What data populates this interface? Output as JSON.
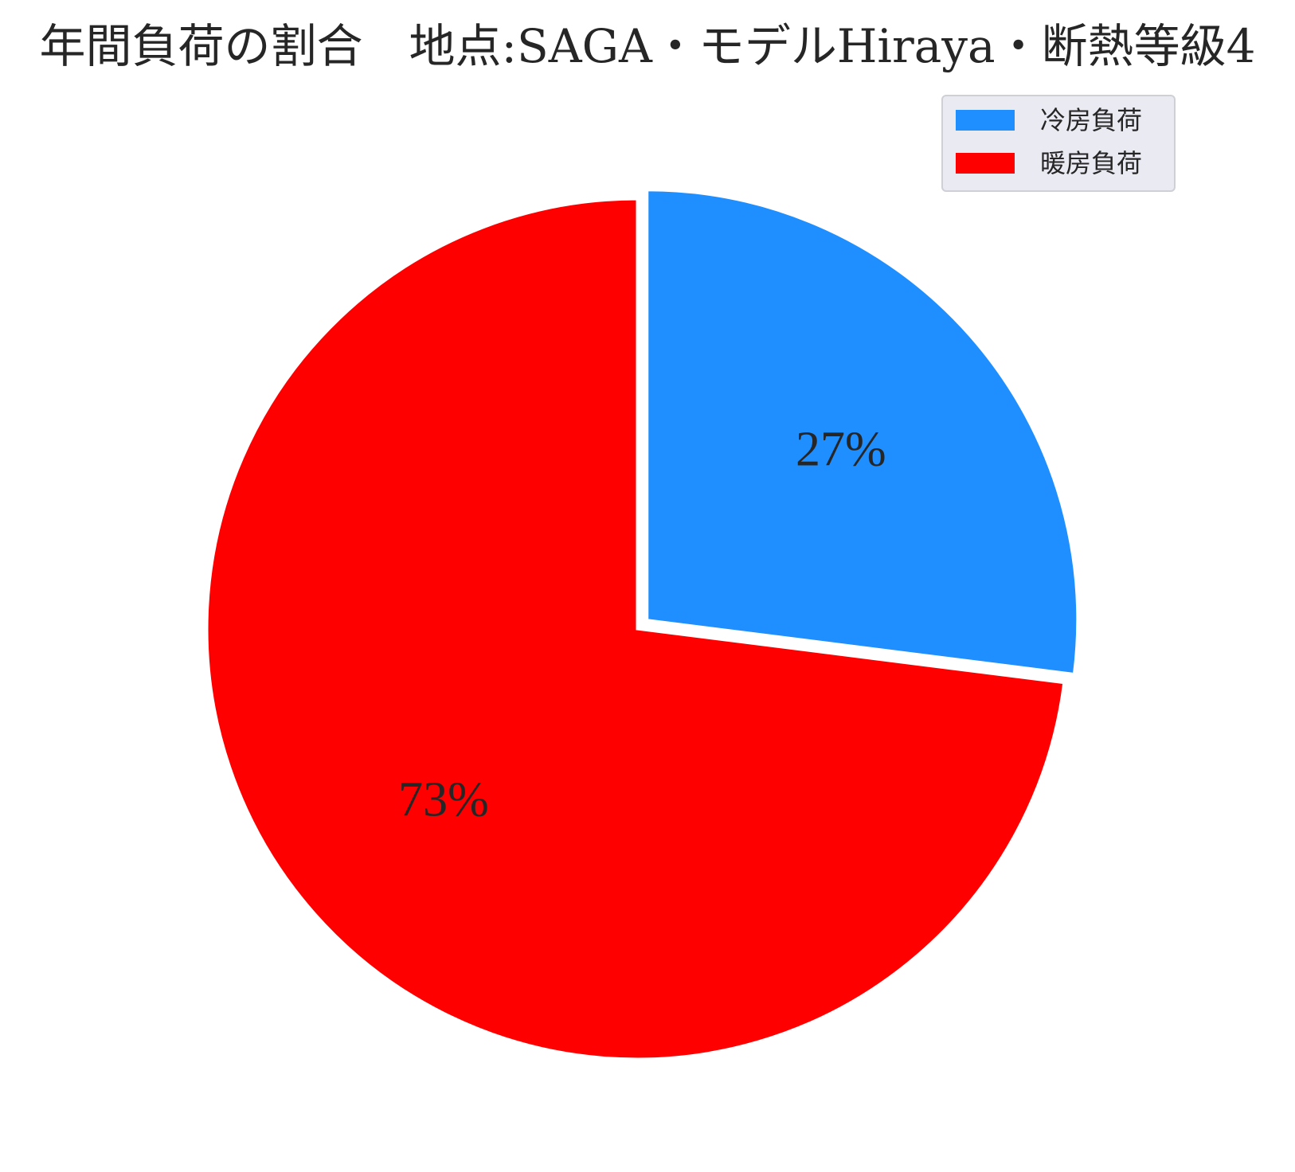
{
  "chart_data": {
    "type": "pie",
    "title": "年間負荷の割合　地点:SAGA・モデルHiraya・断熱等級4",
    "slices": [
      {
        "label": "冷房負荷",
        "value": 27,
        "pct_label": "27%",
        "color": "#1f8fff",
        "exploded": true
      },
      {
        "label": "暖房負荷",
        "value": 73,
        "pct_label": "73%",
        "color": "#ff0000",
        "exploded": false
      }
    ],
    "legend_position": "top-right",
    "legend_background": "#eaeaf2"
  }
}
